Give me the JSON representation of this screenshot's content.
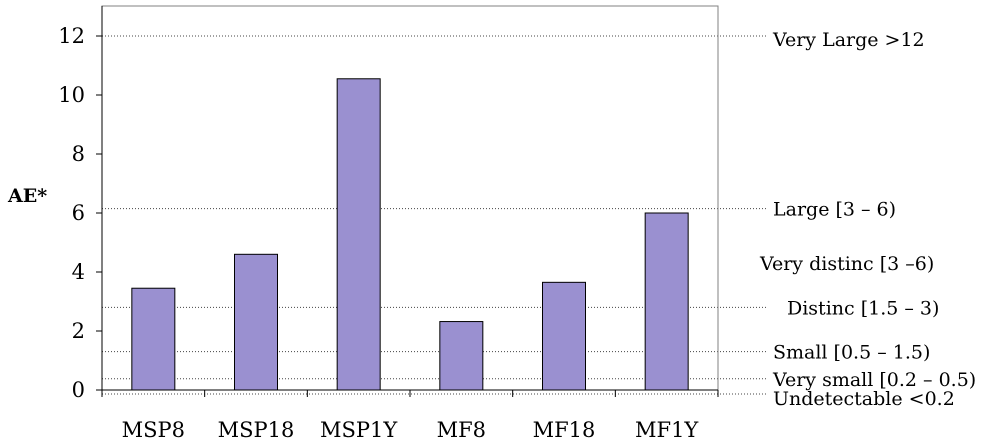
{
  "chart_data": {
    "type": "bar",
    "categories": [
      "MSP8",
      "MSP18",
      "MSP1Y",
      "MF8",
      "MF18",
      "MF1Y"
    ],
    "values": [
      3.45,
      4.6,
      10.55,
      2.32,
      3.65,
      6.0
    ],
    "ylabel": "AE*",
    "xlabel": "",
    "title": "",
    "ylim": [
      0,
      13
    ],
    "yticks": [
      0,
      2,
      4,
      6,
      8,
      10,
      12
    ],
    "bar_color": "#9a90d0",
    "grid": false,
    "reference_lines": [
      {
        "value": 12,
        "label": "Very Large >12"
      },
      {
        "value": 6,
        "label": "Large [3 – 6)"
      },
      {
        "value": 3,
        "label": "Distinc [1.5 – 3)"
      },
      {
        "value": 1.5,
        "label": "Small [0.5 – 1.5)"
      },
      {
        "value": 0.5,
        "label": "Very small [0.2 – 0.5)"
      },
      {
        "value": 0,
        "label": "Undetectable <0.2"
      }
    ],
    "annotations": [
      {
        "label": "Very distinc [3 –6)",
        "near_value": 4.3
      }
    ]
  }
}
